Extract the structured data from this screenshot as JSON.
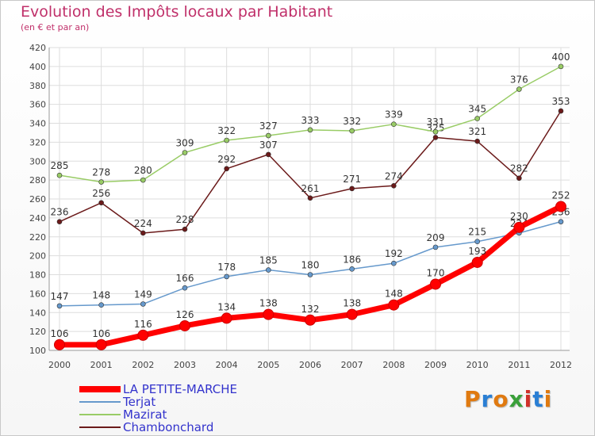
{
  "title": "Evolution des Impôts locaux par Habitant",
  "subtitle": "(en € et par an)",
  "logo_text": "Proxiti",
  "logo_colors": [
    "#e07a10",
    "#2a7fd4",
    "#e07a10",
    "#3aa03a",
    "#d0302a",
    "#2a7fd4",
    "#e07a10"
  ],
  "chart_data": {
    "type": "line",
    "x": [
      "2000",
      "2001",
      "2002",
      "2003",
      "2004",
      "2005",
      "2006",
      "2007",
      "2008",
      "2009",
      "2010",
      "2011",
      "2012"
    ],
    "ylim": [
      100,
      420
    ],
    "yticks": [
      100,
      120,
      140,
      160,
      180,
      200,
      220,
      240,
      260,
      280,
      300,
      320,
      340,
      360,
      380,
      400,
      420
    ],
    "grid": true,
    "legend_position": "bottom-left",
    "series": [
      {
        "name": "Chambonchard",
        "color": "#6b1a1a",
        "values": [
          236,
          256,
          224,
          228,
          292,
          307,
          261,
          271,
          274,
          325,
          321,
          282,
          353
        ]
      },
      {
        "name": "Mazirat",
        "color": "#99cc66",
        "values": [
          285,
          278,
          280,
          309,
          322,
          327,
          333,
          332,
          339,
          331,
          345,
          376,
          400
        ]
      },
      {
        "name": "Terjat",
        "color": "#6699cc",
        "values": [
          147,
          148,
          149,
          166,
          178,
          185,
          180,
          186,
          192,
          209,
          215,
          224,
          236
        ]
      },
      {
        "name": "LA PETITE-MARCHE",
        "color": "#ff0000",
        "values": [
          106,
          106,
          116,
          126,
          134,
          138,
          132,
          138,
          148,
          170,
          193,
          230,
          252
        ]
      }
    ],
    "legend": [
      {
        "name": "LA PETITE-MARCHE",
        "color": "#ff0000",
        "label_color": "#3333cc"
      },
      {
        "name": "Terjat",
        "color": "#6699cc",
        "label_color": "#3333cc"
      },
      {
        "name": "Mazirat",
        "color": "#99cc66",
        "label_color": "#3333cc"
      },
      {
        "name": "Chambonchard",
        "color": "#6b1a1a",
        "label_color": "#3333cc"
      }
    ]
  }
}
